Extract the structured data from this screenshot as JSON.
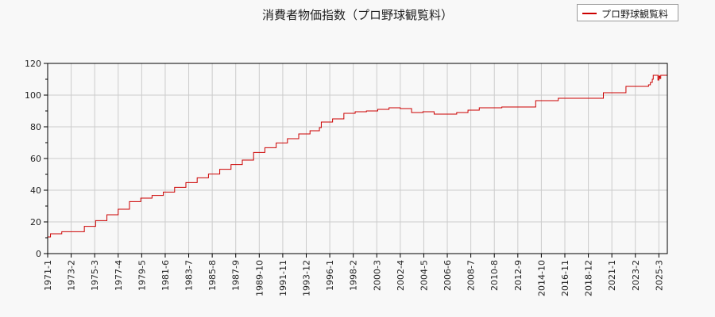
{
  "colors": {
    "line": "#cc0000",
    "grid": "#cccccc",
    "axis": "#000000",
    "background": "#f8f8f8"
  },
  "chart_data": {
    "type": "line",
    "title": "消費者物価指数（プロ野球観覧料）",
    "xlabel": "",
    "ylabel": "",
    "ylim": [
      0,
      120
    ],
    "yticks": [
      0,
      20,
      40,
      60,
      80,
      100,
      120
    ],
    "xlim": [
      "1971-01",
      "2025-12"
    ],
    "xticks": [
      "1971-1",
      "1973-2",
      "1975-3",
      "1977-4",
      "1979-5",
      "1981-6",
      "1983-7",
      "1985-8",
      "1987-9",
      "1989-10",
      "1991-11",
      "1993-12",
      "1996-1",
      "1998-2",
      "2000-3",
      "2002-4",
      "2004-5",
      "2006-6",
      "2008-7",
      "2010-8",
      "2012-9",
      "2014-10",
      "2016-11",
      "2018-12",
      "2021-1",
      "2023-2",
      "2025-3"
    ],
    "grid": true,
    "legend_position": "top-right",
    "series": [
      {
        "name": "プロ野球観覧料",
        "points": [
          [
            "1971-01",
            10.5
          ],
          [
            "1971-04",
            12.5
          ],
          [
            "1972-04",
            13.8
          ],
          [
            "1974-04",
            17.2
          ],
          [
            "1975-04",
            20.8
          ],
          [
            "1976-04",
            24.5
          ],
          [
            "1977-04",
            28.0
          ],
          [
            "1978-04",
            32.8
          ],
          [
            "1979-04",
            35.0
          ],
          [
            "1980-04",
            36.7
          ],
          [
            "1981-04",
            38.8
          ],
          [
            "1982-04",
            41.8
          ],
          [
            "1983-04",
            44.8
          ],
          [
            "1984-04",
            47.8
          ],
          [
            "1985-04",
            50.2
          ],
          [
            "1986-04",
            53.2
          ],
          [
            "1987-04",
            56.2
          ],
          [
            "1988-04",
            59.0
          ],
          [
            "1989-04",
            63.8
          ],
          [
            "1990-04",
            66.8
          ],
          [
            "1991-04",
            69.8
          ],
          [
            "1992-04",
            72.5
          ],
          [
            "1993-04",
            75.5
          ],
          [
            "1994-04",
            77.5
          ],
          [
            "1995-02",
            79.5
          ],
          [
            "1995-04",
            83.0
          ],
          [
            "1996-04",
            85.0
          ],
          [
            "1997-04",
            88.5
          ],
          [
            "1998-04",
            89.5
          ],
          [
            "1999-04",
            90.0
          ],
          [
            "2000-04",
            91.0
          ],
          [
            "2001-04",
            92.0
          ],
          [
            "2002-04",
            91.5
          ],
          [
            "2003-04",
            89.0
          ],
          [
            "2004-04",
            89.5
          ],
          [
            "2005-04",
            88.0
          ],
          [
            "2007-04",
            89.0
          ],
          [
            "2008-04",
            90.5
          ],
          [
            "2009-04",
            92.0
          ],
          [
            "2011-04",
            92.5
          ],
          [
            "2014-04",
            96.5
          ],
          [
            "2016-04",
            98.0
          ],
          [
            "2020-04",
            101.5
          ],
          [
            "2022-04",
            105.5
          ],
          [
            "2024-04",
            106.5
          ],
          [
            "2024-06",
            108.0
          ],
          [
            "2024-08",
            110.0
          ],
          [
            "2024-09",
            112.5
          ],
          [
            "2025-02",
            109.5
          ],
          [
            "2025-03",
            112.0
          ],
          [
            "2025-04",
            110.5
          ],
          [
            "2025-05",
            112.5
          ],
          [
            "2025-12",
            112.5
          ]
        ]
      }
    ]
  }
}
